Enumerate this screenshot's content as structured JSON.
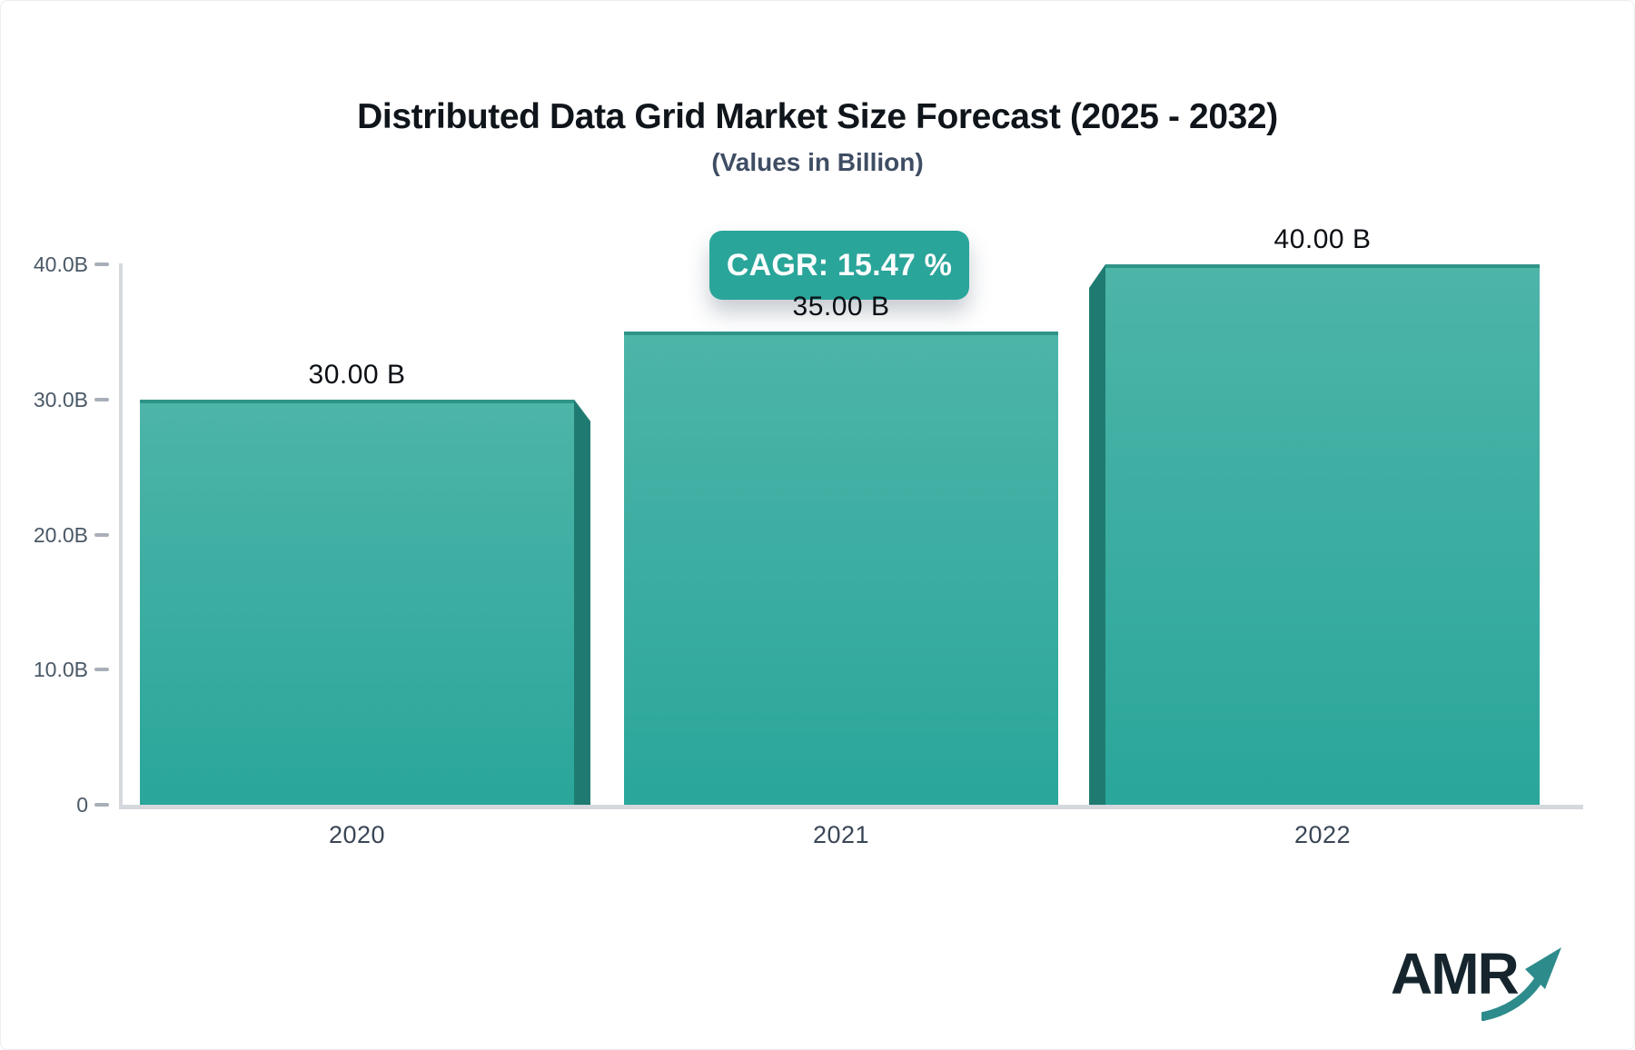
{
  "header": {
    "title": "Distributed Data Grid Market Size Forecast (2025 - 2032)",
    "subtitle": "(Values in Billion)"
  },
  "badge": {
    "label": "CAGR: 15.47 %"
  },
  "chart_data": {
    "type": "bar",
    "title": "Distributed Data Grid Market Size Forecast (2025 - 2032)",
    "subtitle": "(Values in Billion)",
    "cagr_percent": 15.47,
    "categories": [
      "2020",
      "2021",
      "2022"
    ],
    "values": [
      30,
      35,
      40
    ],
    "value_labels": [
      "30.00 B",
      "35.00 B",
      "40.00 B"
    ],
    "ylim": [
      0,
      40
    ],
    "yticks": [
      0,
      10,
      20,
      30,
      40
    ],
    "ytick_labels": [
      "0",
      "10.0B",
      "20.0B",
      "30.0B",
      "40.0B"
    ],
    "grid": false,
    "legend": "none",
    "bar_extrusion": [
      "right",
      "none",
      "left"
    ]
  },
  "colors": {
    "bar_top": "#4db4a8",
    "bar_bottom": "#2aa69a",
    "bar_top_border": "#2f9488",
    "bar_side": "#1f7b71",
    "badge_bg": "#2aa59a",
    "badge_text": "#ffffff",
    "title_text": "#10151b",
    "subtitle_text": "#3e4d63",
    "axis_line": "#d5d8dd",
    "tick_text": "#4a5866",
    "category_text": "#3a4656",
    "value_text": "#0b0f14",
    "logo_text": "#16252d",
    "logo_arrow": "#2e8b8b"
  },
  "logo": {
    "text": "AMR"
  }
}
